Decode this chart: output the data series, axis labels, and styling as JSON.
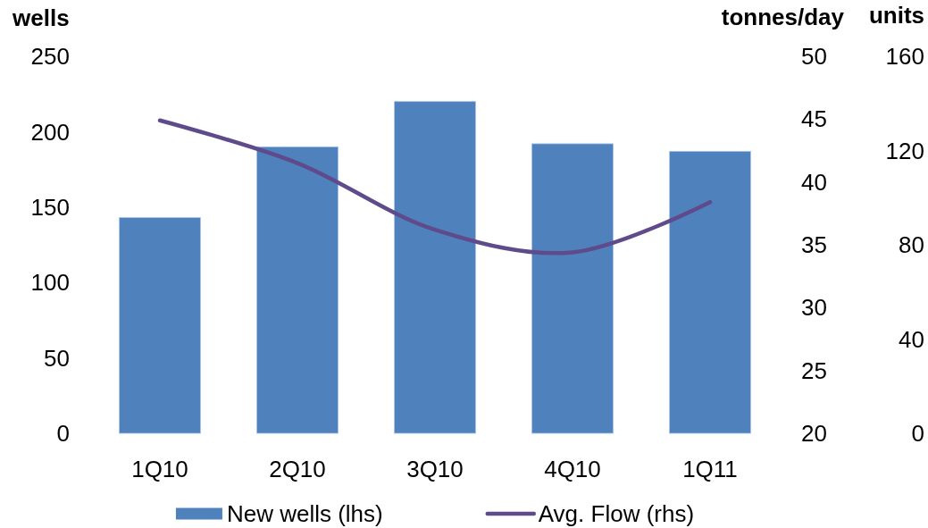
{
  "chart_data": {
    "type": "bar",
    "categories": [
      "1Q10",
      "2Q10",
      "3Q10",
      "4Q10",
      "1Q11"
    ],
    "series": [
      {
        "name": "New wells (lhs)",
        "color": "#4f81bd",
        "values": [
          143,
          190,
          220,
          192,
          187
        ]
      },
      {
        "name": "Avg. Flow (rhs)",
        "type": "line",
        "axis": "y2",
        "color": "#5f4b8b",
        "values": [
          44.9,
          41.5,
          36.2,
          34.4,
          38.4
        ]
      }
    ],
    "ylabel": "wells",
    "y2label": "tonnes/day",
    "y3label": "units",
    "ylim": [
      0,
      250
    ],
    "yticks": [
      0,
      50,
      100,
      150,
      200,
      250
    ],
    "y2lim": [
      20,
      50
    ],
    "y2ticks": [
      20,
      25,
      30,
      35,
      40,
      45,
      50
    ],
    "y3lim": [
      0,
      160
    ],
    "y3ticks": [
      0,
      40,
      80,
      120,
      160
    ],
    "legend": "bottom"
  }
}
